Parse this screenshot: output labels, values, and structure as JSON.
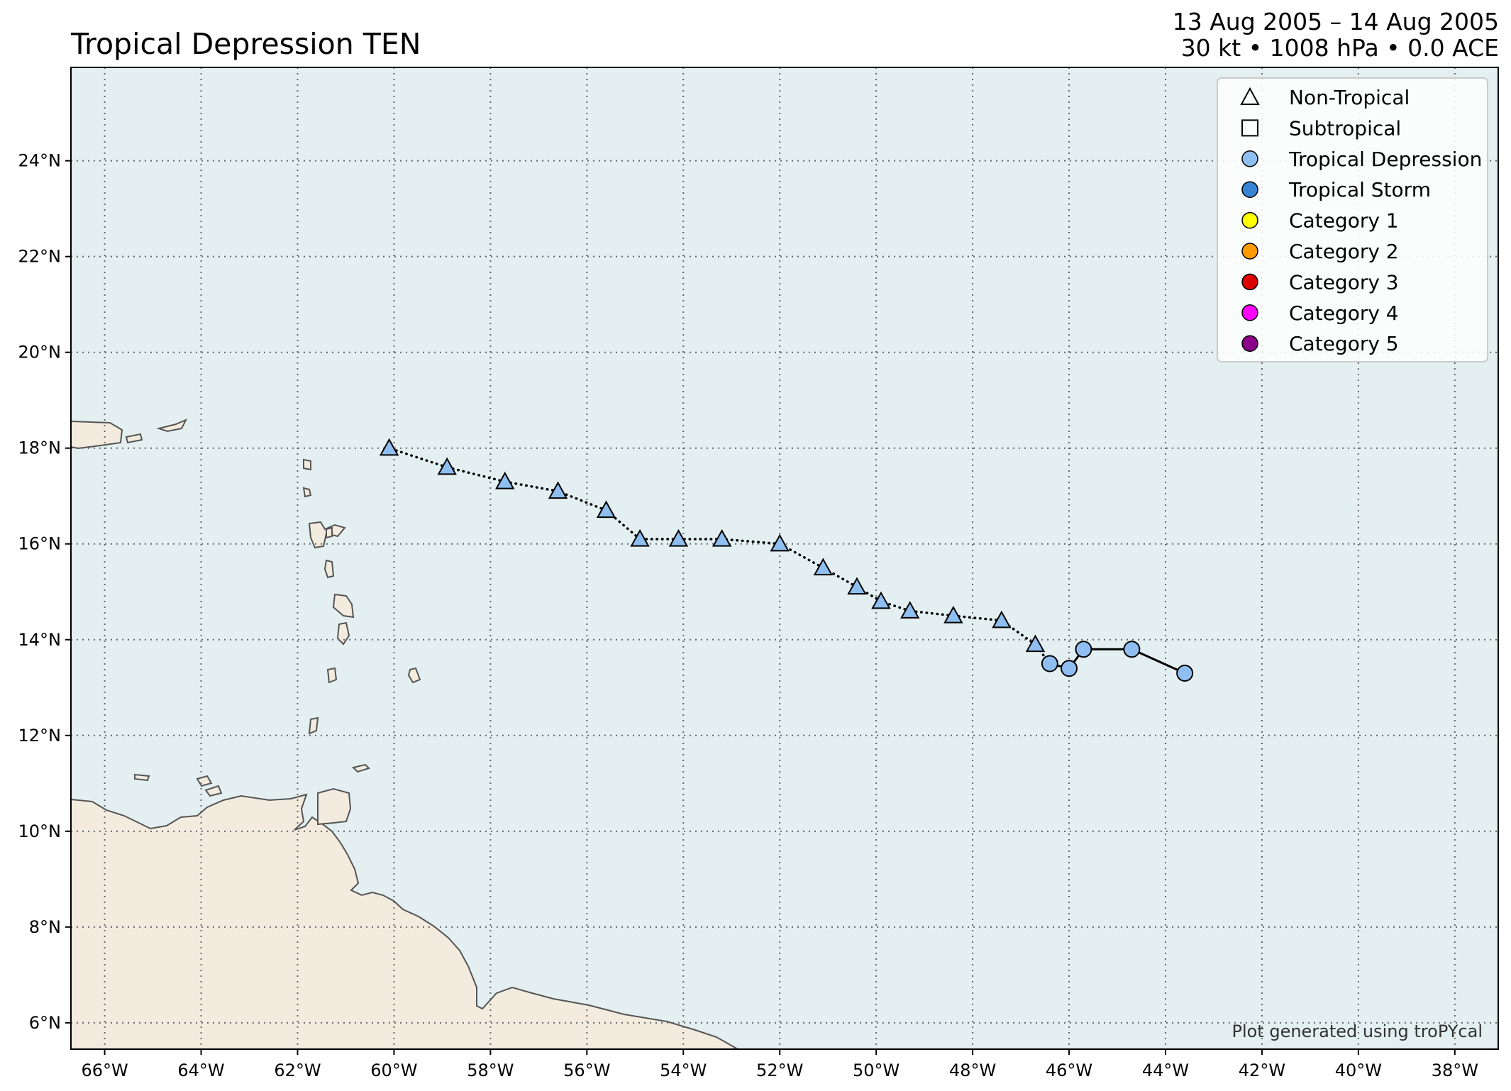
{
  "title": "Tropical Depression TEN",
  "subtitle": {
    "dates": "13 Aug 2005 – 14 Aug 2005",
    "stats": "30 kt • 1008 hPa • 0.0 ACE"
  },
  "map": {
    "extent": {
      "lon_min": -66.7,
      "lon_max": -37.1,
      "lat_min": 5.45,
      "lat_max": 25.95
    },
    "lon_ticks": [
      {
        "value": -66,
        "label": "66°W"
      },
      {
        "value": -64,
        "label": "64°W"
      },
      {
        "value": -62,
        "label": "62°W"
      },
      {
        "value": -60,
        "label": "60°W"
      },
      {
        "value": -58,
        "label": "58°W"
      },
      {
        "value": -56,
        "label": "56°W"
      },
      {
        "value": -54,
        "label": "54°W"
      },
      {
        "value": -52,
        "label": "52°W"
      },
      {
        "value": -50,
        "label": "50°W"
      },
      {
        "value": -48,
        "label": "48°W"
      },
      {
        "value": -46,
        "label": "46°W"
      },
      {
        "value": -44,
        "label": "44°W"
      },
      {
        "value": -42,
        "label": "42°W"
      },
      {
        "value": -40,
        "label": "40°W"
      },
      {
        "value": -38,
        "label": "38°W"
      }
    ],
    "lat_ticks": [
      {
        "value": 6,
        "label": "6°N"
      },
      {
        "value": 8,
        "label": "8°N"
      },
      {
        "value": 10,
        "label": "10°N"
      },
      {
        "value": 12,
        "label": "12°N"
      },
      {
        "value": 14,
        "label": "14°N"
      },
      {
        "value": 16,
        "label": "16°N"
      },
      {
        "value": 18,
        "label": "18°N"
      },
      {
        "value": 20,
        "label": "20°N"
      },
      {
        "value": 22,
        "label": "22°N"
      },
      {
        "value": 24,
        "label": "24°N"
      }
    ],
    "colors": {
      "ocean": "#e3eff0",
      "land": "#f4ebdf",
      "coast": "#555555",
      "grid": "#666666",
      "track_line": "#000000"
    },
    "track": [
      {
        "lon": -43.6,
        "lat": 13.3,
        "type": "tropical-depression"
      },
      {
        "lon": -44.7,
        "lat": 13.8,
        "type": "tropical-depression"
      },
      {
        "lon": -45.7,
        "lat": 13.8,
        "type": "tropical-depression"
      },
      {
        "lon": -46.0,
        "lat": 13.4,
        "type": "tropical-depression"
      },
      {
        "lon": -46.4,
        "lat": 13.5,
        "type": "tropical-depression"
      },
      {
        "lon": -46.7,
        "lat": 13.9,
        "type": "non-tropical"
      },
      {
        "lon": -47.4,
        "lat": 14.4,
        "type": "non-tropical"
      },
      {
        "lon": -48.4,
        "lat": 14.5,
        "type": "non-tropical"
      },
      {
        "lon": -49.3,
        "lat": 14.6,
        "type": "non-tropical"
      },
      {
        "lon": -49.9,
        "lat": 14.8,
        "type": "non-tropical"
      },
      {
        "lon": -50.4,
        "lat": 15.1,
        "type": "non-tropical"
      },
      {
        "lon": -51.1,
        "lat": 15.5,
        "type": "non-tropical"
      },
      {
        "lon": -52.0,
        "lat": 16.0,
        "type": "non-tropical"
      },
      {
        "lon": -53.2,
        "lat": 16.1,
        "type": "non-tropical"
      },
      {
        "lon": -54.1,
        "lat": 16.1,
        "type": "non-tropical"
      },
      {
        "lon": -54.9,
        "lat": 16.1,
        "type": "non-tropical"
      },
      {
        "lon": -55.6,
        "lat": 16.7,
        "type": "non-tropical"
      },
      {
        "lon": -56.6,
        "lat": 17.1,
        "type": "non-tropical"
      },
      {
        "lon": -57.7,
        "lat": 17.3,
        "type": "non-tropical"
      },
      {
        "lon": -58.9,
        "lat": 17.6,
        "type": "non-tropical"
      },
      {
        "lon": -60.1,
        "lat": 18.0,
        "type": "non-tropical"
      }
    ]
  },
  "legend": {
    "placement": "top-right",
    "items": [
      {
        "label": "Non-Tropical",
        "marker": "triangle",
        "fill": "none"
      },
      {
        "label": "Subtropical",
        "marker": "square",
        "fill": "none"
      },
      {
        "label": "Tropical Depression",
        "marker": "circle",
        "fill": "#8fbff0"
      },
      {
        "label": "Tropical Storm",
        "marker": "circle",
        "fill": "#3884d4"
      },
      {
        "label": "Category 1",
        "marker": "circle",
        "fill": "#ffff00"
      },
      {
        "label": "Category 2",
        "marker": "circle",
        "fill": "#ff9a00"
      },
      {
        "label": "Category 3",
        "marker": "circle",
        "fill": "#dd0000"
      },
      {
        "label": "Category 4",
        "marker": "circle",
        "fill": "#ff00ff"
      },
      {
        "label": "Category 5",
        "marker": "circle",
        "fill": "#8b0088"
      }
    ]
  },
  "credit": "Plot generated using troPYcal"
}
